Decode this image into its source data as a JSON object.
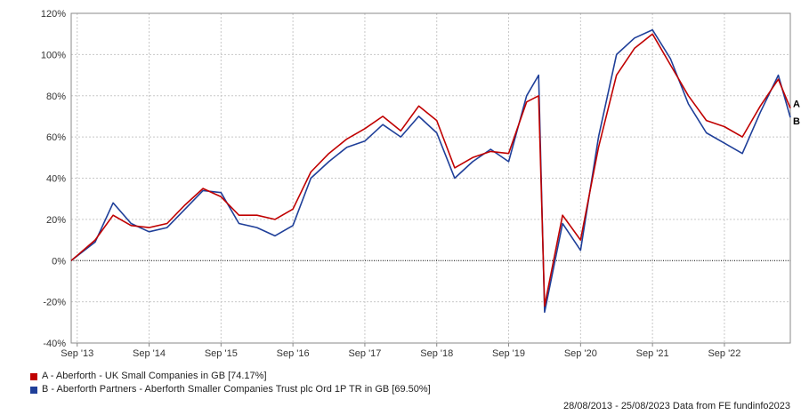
{
  "chart_data": {
    "type": "line",
    "title": "",
    "xlabel": "",
    "ylabel": "",
    "ylim": [
      -40,
      120
    ],
    "grid": true,
    "x_ticks": [
      "Sep '13",
      "Sep '14",
      "Sep '15",
      "Sep '16",
      "Sep '17",
      "Sep '18",
      "Sep '19",
      "Sep '20",
      "Sep '21",
      "Sep '22"
    ],
    "y_ticks": [
      "120%",
      "100%",
      "80%",
      "60%",
      "40%",
      "20%",
      "0%",
      "-20%",
      "-40%"
    ],
    "y_tick_values": [
      120,
      100,
      80,
      60,
      40,
      20,
      0,
      -20,
      -40
    ],
    "x": [
      "2013-08",
      "2013-12",
      "2014-03",
      "2014-06",
      "2014-09",
      "2014-12",
      "2015-03",
      "2015-06",
      "2015-09",
      "2015-12",
      "2016-03",
      "2016-06",
      "2016-09",
      "2016-12",
      "2017-03",
      "2017-06",
      "2017-09",
      "2017-12",
      "2018-03",
      "2018-06",
      "2018-09",
      "2018-12",
      "2019-03",
      "2019-06",
      "2019-09",
      "2019-12",
      "2020-02",
      "2020-03",
      "2020-06",
      "2020-09",
      "2020-12",
      "2021-03",
      "2021-06",
      "2021-09",
      "2021-12",
      "2022-03",
      "2022-06",
      "2022-09",
      "2022-12",
      "2023-03",
      "2023-06",
      "2023-08"
    ],
    "series": [
      {
        "name": "A - Aberforth - UK Small Companies in GB [74.17%]",
        "end_label": "A",
        "color": "#c00000",
        "values": [
          0,
          10,
          22,
          17,
          16,
          18,
          27,
          35,
          31,
          22,
          22,
          20,
          25,
          43,
          52,
          59,
          64,
          70,
          63,
          75,
          68,
          45,
          50,
          53,
          52,
          77,
          80,
          -22,
          22,
          10,
          55,
          90,
          103,
          110,
          95,
          80,
          68,
          65,
          60,
          75,
          88,
          74
        ]
      },
      {
        "name": "B - Aberforth Partners - Aberforth Smaller Companies Trust plc Ord 1P TR in GB [69.50%]",
        "end_label": "B",
        "color": "#1f3f99",
        "values": [
          0,
          9,
          28,
          18,
          14,
          16,
          25,
          34,
          33,
          18,
          16,
          12,
          17,
          40,
          48,
          55,
          58,
          66,
          60,
          70,
          62,
          40,
          48,
          54,
          48,
          80,
          90,
          -25,
          18,
          5,
          60,
          100,
          108,
          112,
          98,
          76,
          62,
          57,
          52,
          72,
          90,
          69.5
        ]
      }
    ],
    "legend_position": "bottom-left"
  },
  "footer": "28/08/2013 - 25/08/2023 Data from FE fundinfo2023"
}
